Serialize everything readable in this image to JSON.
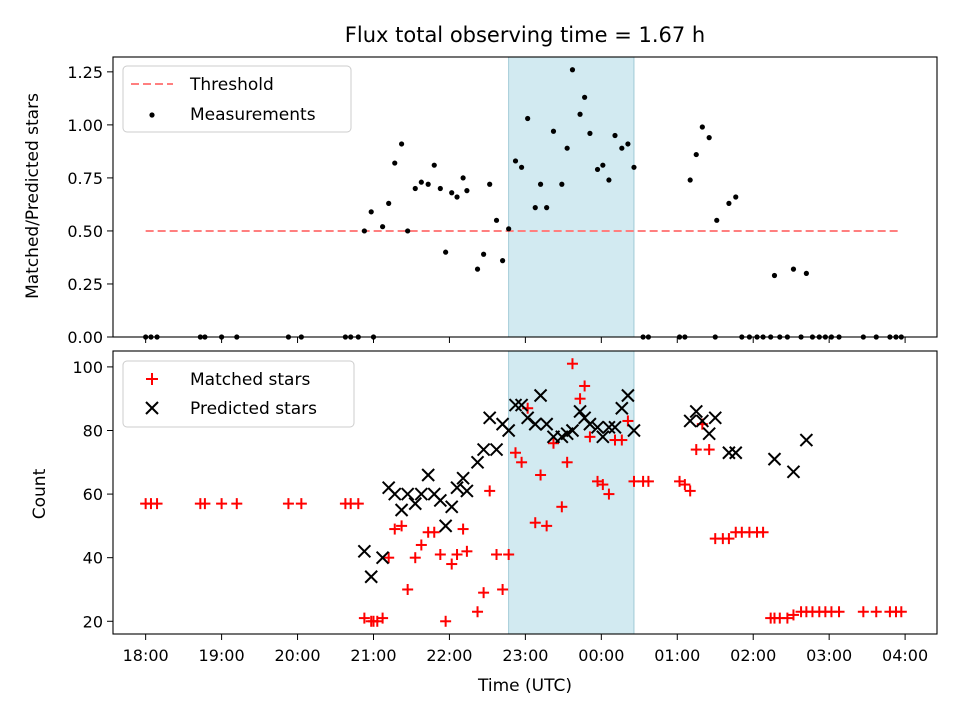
{
  "chart_data": [
    {
      "type": "scatter",
      "title": "Flux total observing time = 1.67 h",
      "xlabel": "",
      "ylabel": "Matched/Predicted stars",
      "xlim": [
        17.57,
        28.42
      ],
      "ylim": [
        0,
        1.32
      ],
      "yticks": [
        0.0,
        0.25,
        0.5,
        0.75,
        1.0,
        1.25
      ],
      "ytick_labels": [
        "0.00",
        "0.25",
        "0.50",
        "0.75",
        "1.00",
        "1.25"
      ],
      "legend_position": "upper-left",
      "shaded_region": [
        22.78,
        24.43
      ],
      "series": [
        {
          "name": "Threshold",
          "kind": "dashed-line",
          "color": "#ff7f7f",
          "x": [
            18.0,
            27.95
          ],
          "y": [
            0.5,
            0.5
          ]
        },
        {
          "name": "Measurements",
          "kind": "dots",
          "color": "#000000",
          "points": [
            [
              18.0,
              0
            ],
            [
              18.07,
              0
            ],
            [
              18.15,
              0
            ],
            [
              18.72,
              0
            ],
            [
              18.78,
              0
            ],
            [
              19.0,
              0
            ],
            [
              19.2,
              0
            ],
            [
              19.88,
              0
            ],
            [
              20.05,
              0
            ],
            [
              20.63,
              0
            ],
            [
              20.7,
              0
            ],
            [
              20.8,
              0
            ],
            [
              20.88,
              0.5
            ],
            [
              20.97,
              0.59
            ],
            [
              21.0,
              0
            ],
            [
              21.12,
              0.52
            ],
            [
              21.2,
              0.63
            ],
            [
              21.28,
              0.82
            ],
            [
              21.37,
              0.91
            ],
            [
              21.45,
              0.5
            ],
            [
              21.55,
              0.7
            ],
            [
              21.63,
              0.73
            ],
            [
              21.72,
              0.72
            ],
            [
              21.8,
              0.81
            ],
            [
              21.88,
              0.7
            ],
            [
              21.95,
              0.4
            ],
            [
              22.03,
              0.68
            ],
            [
              22.1,
              0.66
            ],
            [
              22.18,
              0.75
            ],
            [
              22.23,
              0.69
            ],
            [
              22.37,
              0.32
            ],
            [
              22.45,
              0.39
            ],
            [
              22.53,
              0.72
            ],
            [
              22.62,
              0.55
            ],
            [
              22.7,
              0.36
            ],
            [
              22.78,
              0.51
            ],
            [
              22.87,
              0.83
            ],
            [
              22.95,
              0.8
            ],
            [
              23.03,
              1.03
            ],
            [
              23.13,
              0.61
            ],
            [
              23.2,
              0.72
            ],
            [
              23.28,
              0.61
            ],
            [
              23.37,
              0.97
            ],
            [
              23.48,
              0.72
            ],
            [
              23.55,
              0.89
            ],
            [
              23.62,
              1.26
            ],
            [
              23.72,
              1.05
            ],
            [
              23.78,
              1.13
            ],
            [
              23.85,
              0.96
            ],
            [
              23.95,
              0.79
            ],
            [
              24.02,
              0.81
            ],
            [
              24.1,
              0.74
            ],
            [
              24.18,
              0.95
            ],
            [
              24.27,
              0.89
            ],
            [
              24.35,
              0.91
            ],
            [
              24.43,
              0.8
            ],
            [
              24.55,
              0
            ],
            [
              24.62,
              0
            ],
            [
              25.03,
              0
            ],
            [
              25.1,
              0
            ],
            [
              25.17,
              0.74
            ],
            [
              25.25,
              0.86
            ],
            [
              25.33,
              0.99
            ],
            [
              25.42,
              0.94
            ],
            [
              25.5,
              0
            ],
            [
              25.52,
              0.55
            ],
            [
              25.68,
              0.63
            ],
            [
              25.77,
              0.66
            ],
            [
              25.85,
              0
            ],
            [
              25.95,
              0
            ],
            [
              26.05,
              0
            ],
            [
              26.13,
              0
            ],
            [
              26.23,
              0
            ],
            [
              26.28,
              0.29
            ],
            [
              26.35,
              0
            ],
            [
              26.45,
              0
            ],
            [
              26.53,
              0.32
            ],
            [
              26.63,
              0
            ],
            [
              26.7,
              0.3
            ],
            [
              26.78,
              0
            ],
            [
              26.87,
              0
            ],
            [
              26.95,
              0
            ],
            [
              27.03,
              0
            ],
            [
              27.13,
              0
            ],
            [
              27.45,
              0
            ],
            [
              27.62,
              0
            ],
            [
              27.8,
              0
            ],
            [
              27.88,
              0
            ],
            [
              27.95,
              0
            ]
          ]
        }
      ]
    },
    {
      "type": "scatter",
      "title": "",
      "xlabel": "Time (UTC)",
      "ylabel": "Count",
      "xlim": [
        17.57,
        28.42
      ],
      "ylim": [
        16,
        105
      ],
      "yticks": [
        20,
        40,
        60,
        80,
        100
      ],
      "ytick_labels": [
        "20",
        "40",
        "60",
        "80",
        "100"
      ],
      "xticks": [
        18,
        19,
        20,
        21,
        22,
        23,
        24,
        25,
        26,
        27,
        28
      ],
      "xtick_labels": [
        "18:00",
        "19:00",
        "20:00",
        "21:00",
        "22:00",
        "23:00",
        "00:00",
        "01:00",
        "02:00",
        "03:00",
        "04:00"
      ],
      "legend_position": "upper-left",
      "shaded_region": [
        22.78,
        24.43
      ],
      "series": [
        {
          "name": "Matched stars",
          "kind": "plus",
          "color": "#ff0000",
          "points": [
            [
              18.0,
              57
            ],
            [
              18.07,
              57
            ],
            [
              18.15,
              57
            ],
            [
              18.72,
              57
            ],
            [
              18.78,
              57
            ],
            [
              19.0,
              57
            ],
            [
              19.2,
              57
            ],
            [
              19.88,
              57
            ],
            [
              20.05,
              57
            ],
            [
              20.63,
              57
            ],
            [
              20.7,
              57
            ],
            [
              20.8,
              57
            ],
            [
              20.88,
              21
            ],
            [
              20.97,
              20
            ],
            [
              21.0,
              20
            ],
            [
              21.05,
              20
            ],
            [
              21.12,
              21
            ],
            [
              21.2,
              40
            ],
            [
              21.28,
              49
            ],
            [
              21.37,
              50
            ],
            [
              21.45,
              30
            ],
            [
              21.55,
              40
            ],
            [
              21.63,
              44
            ],
            [
              21.72,
              48
            ],
            [
              21.8,
              48
            ],
            [
              21.88,
              41
            ],
            [
              21.95,
              20
            ],
            [
              22.03,
              38
            ],
            [
              22.1,
              41
            ],
            [
              22.18,
              49
            ],
            [
              22.23,
              42
            ],
            [
              22.37,
              23
            ],
            [
              22.45,
              29
            ],
            [
              22.53,
              61
            ],
            [
              22.62,
              41
            ],
            [
              22.7,
              30
            ],
            [
              22.78,
              41
            ],
            [
              22.87,
              73
            ],
            [
              22.95,
              70
            ],
            [
              23.03,
              87
            ],
            [
              23.13,
              51
            ],
            [
              23.2,
              66
            ],
            [
              23.28,
              50
            ],
            [
              23.37,
              76
            ],
            [
              23.48,
              56
            ],
            [
              23.55,
              70
            ],
            [
              23.62,
              101
            ],
            [
              23.72,
              90
            ],
            [
              23.78,
              94
            ],
            [
              23.85,
              78
            ],
            [
              23.95,
              64
            ],
            [
              24.02,
              63
            ],
            [
              24.1,
              60
            ],
            [
              24.18,
              77
            ],
            [
              24.27,
              77
            ],
            [
              24.35,
              83
            ],
            [
              24.43,
              64
            ],
            [
              24.55,
              64
            ],
            [
              24.62,
              64
            ],
            [
              25.03,
              64
            ],
            [
              25.1,
              63
            ],
            [
              25.17,
              61
            ],
            [
              25.25,
              74
            ],
            [
              25.33,
              82
            ],
            [
              25.42,
              74
            ],
            [
              25.5,
              46
            ],
            [
              25.6,
              46
            ],
            [
              25.68,
              46
            ],
            [
              25.77,
              48
            ],
            [
              25.85,
              48
            ],
            [
              25.95,
              48
            ],
            [
              26.05,
              48
            ],
            [
              26.13,
              48
            ],
            [
              26.23,
              21
            ],
            [
              26.28,
              21
            ],
            [
              26.35,
              21
            ],
            [
              26.45,
              21
            ],
            [
              26.53,
              22
            ],
            [
              26.63,
              23
            ],
            [
              26.7,
              23
            ],
            [
              26.78,
              23
            ],
            [
              26.87,
              23
            ],
            [
              26.95,
              23
            ],
            [
              27.03,
              23
            ],
            [
              27.13,
              23
            ],
            [
              27.45,
              23
            ],
            [
              27.62,
              23
            ],
            [
              27.8,
              23
            ],
            [
              27.88,
              23
            ],
            [
              27.95,
              23
            ]
          ]
        },
        {
          "name": "Predicted stars",
          "kind": "x",
          "color": "#000000",
          "points": [
            [
              20.88,
              42
            ],
            [
              20.97,
              34
            ],
            [
              21.12,
              40
            ],
            [
              21.2,
              62
            ],
            [
              21.28,
              60
            ],
            [
              21.37,
              55
            ],
            [
              21.45,
              60
            ],
            [
              21.55,
              57
            ],
            [
              21.63,
              60
            ],
            [
              21.72,
              66
            ],
            [
              21.8,
              60
            ],
            [
              21.88,
              58
            ],
            [
              21.95,
              50
            ],
            [
              22.03,
              56
            ],
            [
              22.1,
              62
            ],
            [
              22.18,
              65
            ],
            [
              22.23,
              61
            ],
            [
              22.37,
              70
            ],
            [
              22.45,
              74
            ],
            [
              22.53,
              84
            ],
            [
              22.62,
              74
            ],
            [
              22.7,
              82
            ],
            [
              22.78,
              80
            ],
            [
              22.87,
              88
            ],
            [
              22.95,
              88
            ],
            [
              23.03,
              84
            ],
            [
              23.13,
              82
            ],
            [
              23.2,
              91
            ],
            [
              23.28,
              82
            ],
            [
              23.37,
              78
            ],
            [
              23.48,
              78
            ],
            [
              23.55,
              79
            ],
            [
              23.62,
              80
            ],
            [
              23.72,
              86
            ],
            [
              23.78,
              84
            ],
            [
              23.85,
              82
            ],
            [
              23.95,
              81
            ],
            [
              24.02,
              78
            ],
            [
              24.1,
              81
            ],
            [
              24.18,
              81
            ],
            [
              24.27,
              87
            ],
            [
              24.35,
              91
            ],
            [
              24.43,
              80
            ],
            [
              25.17,
              83
            ],
            [
              25.25,
              86
            ],
            [
              25.33,
              83
            ],
            [
              25.42,
              79
            ],
            [
              25.5,
              84
            ],
            [
              25.68,
              73
            ],
            [
              25.77,
              73
            ],
            [
              26.28,
              71
            ],
            [
              26.53,
              67
            ],
            [
              26.7,
              77
            ]
          ]
        }
      ]
    }
  ]
}
